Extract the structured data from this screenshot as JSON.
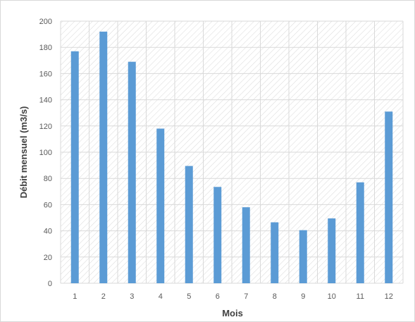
{
  "chart_data": {
    "type": "bar",
    "categories": [
      "1",
      "2",
      "3",
      "4",
      "5",
      "6",
      "7",
      "8",
      "9",
      "10",
      "11",
      "12"
    ],
    "values": [
      177,
      192,
      169,
      118,
      89.5,
      73.5,
      58,
      46.5,
      40.5,
      49.5,
      77,
      131
    ],
    "xlabel": "Mois",
    "ylabel": "Débit mensuel (m3/s)",
    "ylim": [
      0,
      200
    ],
    "yticks": [
      0,
      20,
      40,
      60,
      80,
      100,
      120,
      140,
      160,
      180,
      200
    ],
    "grid": true,
    "legend": "none",
    "colors": {
      "bar": "#5b9bd5",
      "hatch": "#d9d9d9",
      "grid": "#d9d9d9",
      "axis_text": "#595959",
      "title_text": "#404040"
    }
  }
}
